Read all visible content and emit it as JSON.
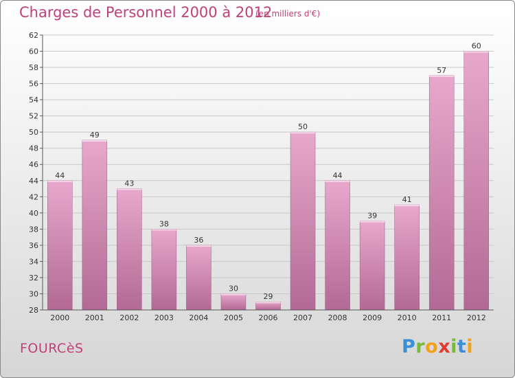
{
  "title": "Charges de Personnel 2000 à 2012",
  "subtitle": "(en milliers d'€)",
  "town": "FOURCèS",
  "logo": {
    "letters": [
      {
        "ch": "P",
        "color": "#3a8fd8"
      },
      {
        "ch": "r",
        "color": "#7ab83a"
      },
      {
        "ch": "o",
        "color": "#f2a21a"
      },
      {
        "ch": "x",
        "color": "#e23a2f"
      },
      {
        "ch": "i",
        "color": "#7ab83a"
      },
      {
        "ch": "t",
        "color": "#3a8fd8"
      },
      {
        "ch": "i",
        "color": "#f2a21a"
      }
    ]
  },
  "chart_data": {
    "type": "bar",
    "categories": [
      "2000",
      "2001",
      "2002",
      "2003",
      "2004",
      "2005",
      "2006",
      "2007",
      "2008",
      "2009",
      "2010",
      "2011",
      "2012"
    ],
    "values": [
      44,
      49,
      43,
      38,
      36,
      30,
      29,
      50,
      44,
      39,
      41,
      57,
      60
    ],
    "ylim": [
      28,
      62
    ],
    "yticks": [
      28,
      30,
      32,
      34,
      36,
      38,
      40,
      42,
      44,
      46,
      48,
      50,
      52,
      54,
      56,
      58,
      60,
      62
    ],
    "grid": true,
    "bar_color_top": "#e8a8cc",
    "bar_color_bottom": "#b26a94"
  }
}
